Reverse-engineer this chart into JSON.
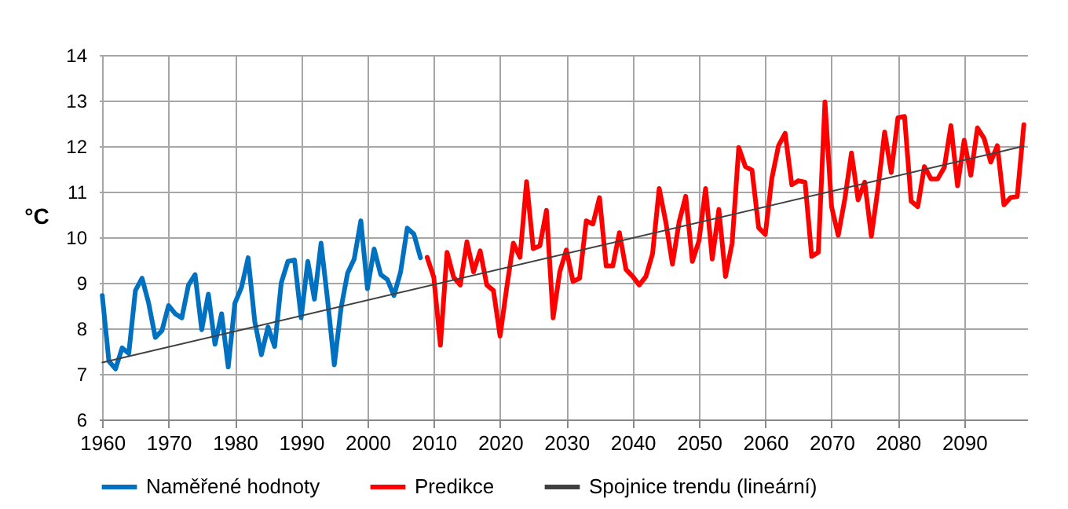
{
  "chart_data": {
    "type": "line",
    "ylabel": "°C",
    "xlim": [
      1959.5,
      2099.5
    ],
    "xticks": [
      1960,
      1970,
      1980,
      1990,
      2000,
      2010,
      2020,
      2030,
      2040,
      2050,
      2060,
      2070,
      2080,
      2090
    ],
    "ylim": [
      6,
      14
    ],
    "yticks": [
      6,
      7,
      8,
      9,
      10,
      11,
      12,
      13,
      14
    ],
    "grid": true,
    "legend": "bottom",
    "line_style": "solid",
    "series": [
      {
        "name": "Naměřené hodnoty",
        "color": "#0070c0",
        "x": [
          1960,
          1961,
          1962,
          1963,
          1964,
          1965,
          1966,
          1967,
          1968,
          1969,
          1970,
          1971,
          1972,
          1973,
          1974,
          1975,
          1976,
          1977,
          1978,
          1979,
          1980,
          1981,
          1982,
          1983,
          1984,
          1985,
          1986,
          1987,
          1988,
          1989,
          1990,
          1991,
          1992,
          1993,
          1994,
          1995,
          1996,
          1997,
          1998,
          1999,
          2000,
          2001,
          2002,
          2003,
          2004,
          2005,
          2006,
          2007,
          2008
        ],
        "values": [
          8.72,
          7.28,
          7.11,
          7.57,
          7.45,
          8.83,
          9.1,
          8.55,
          7.8,
          7.95,
          8.5,
          8.32,
          8.23,
          8.95,
          9.18,
          7.97,
          8.75,
          7.65,
          8.32,
          7.15,
          8.55,
          8.9,
          9.55,
          8.15,
          7.42,
          8.03,
          7.6,
          9.0,
          9.47,
          9.5,
          8.23,
          9.47,
          8.64,
          9.87,
          8.6,
          7.2,
          8.43,
          9.21,
          9.52,
          10.36,
          8.87,
          9.74,
          9.18,
          9.07,
          8.72,
          9.24,
          10.2,
          10.07,
          9.55
        ]
      },
      {
        "name": "Predikce",
        "color": "#ff0000",
        "x": [
          2009,
          2010,
          2011,
          2012,
          2013,
          2014,
          2015,
          2016,
          2017,
          2018,
          2019,
          2020,
          2021,
          2022,
          2023,
          2024,
          2025,
          2026,
          2027,
          2028,
          2029,
          2030,
          2031,
          2032,
          2033,
          2034,
          2035,
          2036,
          2037,
          2038,
          2039,
          2040,
          2041,
          2042,
          2043,
          2044,
          2045,
          2046,
          2047,
          2048,
          2049,
          2050,
          2051,
          2052,
          2053,
          2054,
          2055,
          2056,
          2057,
          2058,
          2059,
          2060,
          2061,
          2062,
          2063,
          2064,
          2065,
          2066,
          2067,
          2068,
          2069,
          2070,
          2071,
          2072,
          2073,
          2074,
          2075,
          2076,
          2077,
          2078,
          2079,
          2080,
          2081,
          2082,
          2083,
          2084,
          2085,
          2086,
          2087,
          2088,
          2089,
          2090,
          2091,
          2092,
          2093,
          2094,
          2095,
          2096,
          2097,
          2098,
          2099
        ],
        "values": [
          9.56,
          9.12,
          7.63,
          9.67,
          9.12,
          8.95,
          9.9,
          9.24,
          9.7,
          8.95,
          8.83,
          7.83,
          8.89,
          9.87,
          9.56,
          11.22,
          9.75,
          9.81,
          10.59,
          8.23,
          9.24,
          9.72,
          9.03,
          9.1,
          10.36,
          10.29,
          10.87,
          9.37,
          9.37,
          10.1,
          9.29,
          9.14,
          8.95,
          9.14,
          9.64,
          11.07,
          10.33,
          9.41,
          10.33,
          10.9,
          9.47,
          9.92,
          11.07,
          9.52,
          10.61,
          9.14,
          9.87,
          11.97,
          11.55,
          11.47,
          10.21,
          10.06,
          11.3,
          12.01,
          12.28,
          11.15,
          11.24,
          11.21,
          9.58,
          9.67,
          12.97,
          10.67,
          10.04,
          10.84,
          11.85,
          10.82,
          11.21,
          10.02,
          11.07,
          12.31,
          11.42,
          12.62,
          12.65,
          10.79,
          10.67,
          11.55,
          11.28,
          11.28,
          11.53,
          12.45,
          11.13,
          12.13,
          11.36,
          12.4,
          12.17,
          11.65,
          12.01,
          10.71,
          10.87,
          10.89,
          12.47
        ]
      },
      {
        "name": "Spojnice trendu (lineární)",
        "color": "#404040",
        "x": [
          1960,
          2099
        ],
        "values": [
          7.25,
          12.0
        ]
      }
    ]
  }
}
